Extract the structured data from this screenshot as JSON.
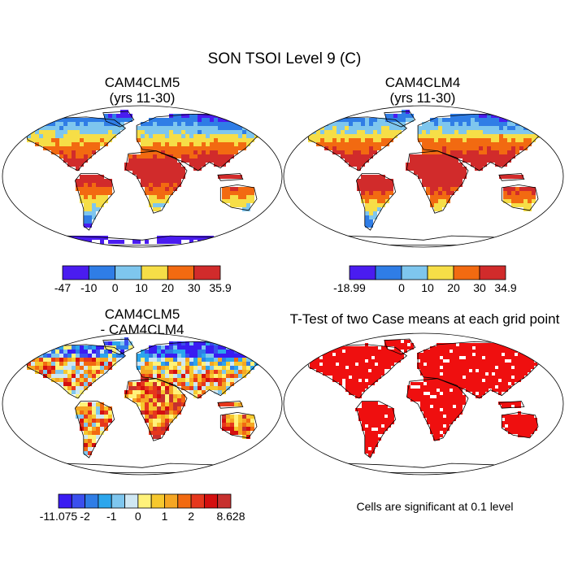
{
  "chart_data": {
    "type": "map",
    "title": "SON TSOI Level 9 (C)",
    "panels": [
      {
        "id": "p1",
        "title_lines": [
          "CAM4CLM5",
          "(yrs 11-30)"
        ],
        "colorbar": {
          "colors": [
            "#4a1cf0",
            "#2f7de6",
            "#7ec6ee",
            "#f6de47",
            "#f26a11",
            "#d12b2b"
          ],
          "tick_labels": [
            "-47",
            "-10",
            "0",
            "10",
            "20",
            "30",
            "35.9"
          ],
          "range": [
            -47,
            35.9
          ]
        }
      },
      {
        "id": "p2",
        "title_lines": [
          "CAM4CLM4",
          "(yrs 11-30)"
        ],
        "colorbar": {
          "colors": [
            "#4a1cf0",
            "#2f7de6",
            "#7ec6ee",
            "#f6de47",
            "#f26a11",
            "#d12b2b"
          ],
          "tick_labels": [
            "-18.99",
            "0",
            "10",
            "20",
            "30",
            "34.9"
          ],
          "range": [
            -18.99,
            34.9
          ]
        }
      },
      {
        "id": "p3",
        "title_lines": [
          "CAM4CLM5",
          "- CAM4CLM4"
        ],
        "colorbar": {
          "colors": [
            "#3a1cf2",
            "#3b4fee",
            "#2f7de6",
            "#2ca6ec",
            "#7ec6ee",
            "#cfe7f3",
            "#fff27a",
            "#f6c82e",
            "#f5a623",
            "#f26a11",
            "#e6371d",
            "#d40f0f",
            "#c7302e"
          ],
          "tick_labels": [
            "-11.075",
            "-2",
            "-1",
            "0",
            "1",
            "2",
            "8.628"
          ],
          "range": [
            -11.075,
            8.628
          ]
        }
      },
      {
        "id": "p4",
        "title_lines": [
          "T-Test of two Case means at each grid point"
        ],
        "fill_color": "#ef0f0f",
        "note": "Cells are significant at 0.1 level"
      }
    ]
  }
}
